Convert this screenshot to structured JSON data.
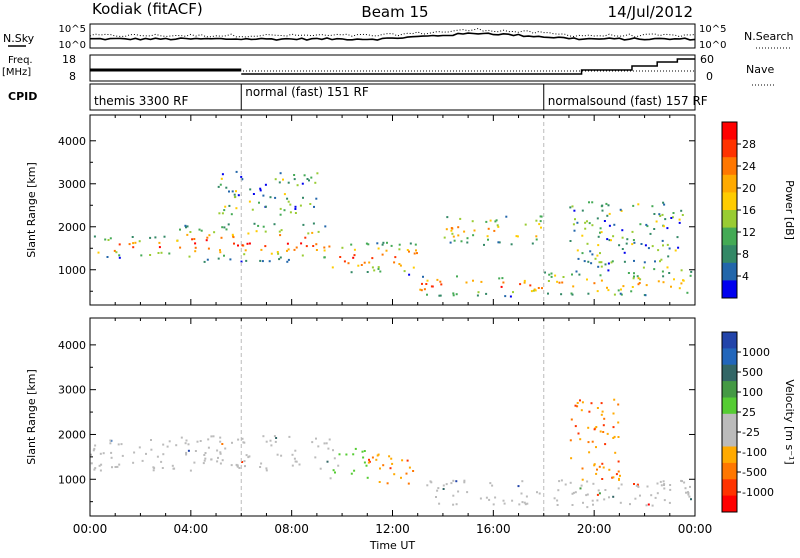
{
  "header": {
    "station": "Kodiak (fitACF)",
    "beam": "Beam 15",
    "date": "14/Jul/2012"
  },
  "top_panels": {
    "nsky_label": "N.Sky",
    "nsky_ticks": [
      "10^5",
      "10^0"
    ],
    "nsearch_label": "N.Search",
    "nsearch_ticks": [
      "10^5",
      "10^0"
    ],
    "freq_label": "Freq.",
    "freq_unit": "[MHz]",
    "freq_ticks": [
      "18",
      "8"
    ],
    "nave_label": "Nave",
    "nave_ticks": [
      "60",
      "0"
    ],
    "cpid_label": "CPID",
    "cpid_segments": [
      {
        "label": "themis 3300 RF",
        "start_hour": 0
      },
      {
        "label": "normal (fast) 151 RF",
        "start_hour": 6
      },
      {
        "label": "normalsound (fast) 157 RF",
        "start_hour": 18
      }
    ]
  },
  "chart_data": [
    {
      "type": "heatmap",
      "title": "",
      "ylabel": "Slant Range [km]",
      "xlabel": "Time UT",
      "ylim": [
        180,
        4600
      ],
      "yticks": [
        "4000",
        "3000",
        "2000",
        "1000"
      ],
      "xticks": [
        "00:00",
        "04:00",
        "08:00",
        "12:00",
        "16:00",
        "20:00",
        "00:00"
      ],
      "colorbar_label": "Power [dB]",
      "colorbar_ticks": [
        "28",
        "24",
        "20",
        "16",
        "12",
        "8",
        "4"
      ],
      "colorbar_colors": [
        "#ff0000",
        "#ff3300",
        "#ff7700",
        "#ffaa00",
        "#ffcc00",
        "#99cc33",
        "#44aa55",
        "#338866",
        "#2266aa",
        "#0000ee"
      ],
      "bands": [
        {
          "t": [
            0,
            3.5
          ],
          "r": [
            1300,
            1800
          ],
          "level": "high"
        },
        {
          "t": [
            3.5,
            9.5
          ],
          "r": [
            1200,
            2100
          ],
          "level": "high"
        },
        {
          "t": [
            9.5,
            13
          ],
          "r": [
            900,
            1700
          ],
          "level": "high"
        },
        {
          "t": [
            13,
            18
          ],
          "r": [
            400,
            900
          ],
          "level": "high"
        },
        {
          "t": [
            18,
            24
          ],
          "r": [
            400,
            1000
          ],
          "level": "mid"
        },
        {
          "t": [
            14,
            18
          ],
          "r": [
            1600,
            2300
          ],
          "level": "mid"
        },
        {
          "t": [
            5,
            9
          ],
          "r": [
            2300,
            3300
          ],
          "level": "low"
        },
        {
          "t": [
            19,
            23.5
          ],
          "r": [
            1000,
            2600
          ],
          "level": "low"
        }
      ]
    },
    {
      "type": "heatmap",
      "title": "",
      "ylabel": "Slant Range [km]",
      "xlabel": "Time UT",
      "ylim": [
        180,
        4600
      ],
      "yticks": [
        "4000",
        "3000",
        "2000",
        "1000"
      ],
      "xticks": [
        "00:00",
        "04:00",
        "08:00",
        "12:00",
        "16:00",
        "20:00",
        "00:00"
      ],
      "colorbar_label": "Velocity [m s⁻¹]",
      "colorbar_ticks": [
        "1000",
        "500",
        "100",
        "25",
        "-25",
        "-100",
        "-500",
        "-1000"
      ],
      "colorbar_colors": [
        "#2244aa",
        "#2266bb",
        "#336666",
        "#449944",
        "#55cc33",
        "#bbbbbb",
        "#bbbbbb",
        "#ffaa00",
        "#ff7700",
        "#ff3300",
        "#ff0000"
      ],
      "bands": [
        {
          "t": [
            0,
            9.5
          ],
          "r": [
            1200,
            2000
          ],
          "level": "ground"
        },
        {
          "t": [
            9.5,
            11
          ],
          "r": [
            1000,
            1700
          ],
          "level": "green"
        },
        {
          "t": [
            11,
            13
          ],
          "r": [
            900,
            1600
          ],
          "level": "orange"
        },
        {
          "t": [
            13,
            24
          ],
          "r": [
            400,
            1000
          ],
          "level": "ground"
        },
        {
          "t": [
            19,
            21
          ],
          "r": [
            1000,
            2800
          ],
          "level": "orange"
        }
      ]
    }
  ]
}
